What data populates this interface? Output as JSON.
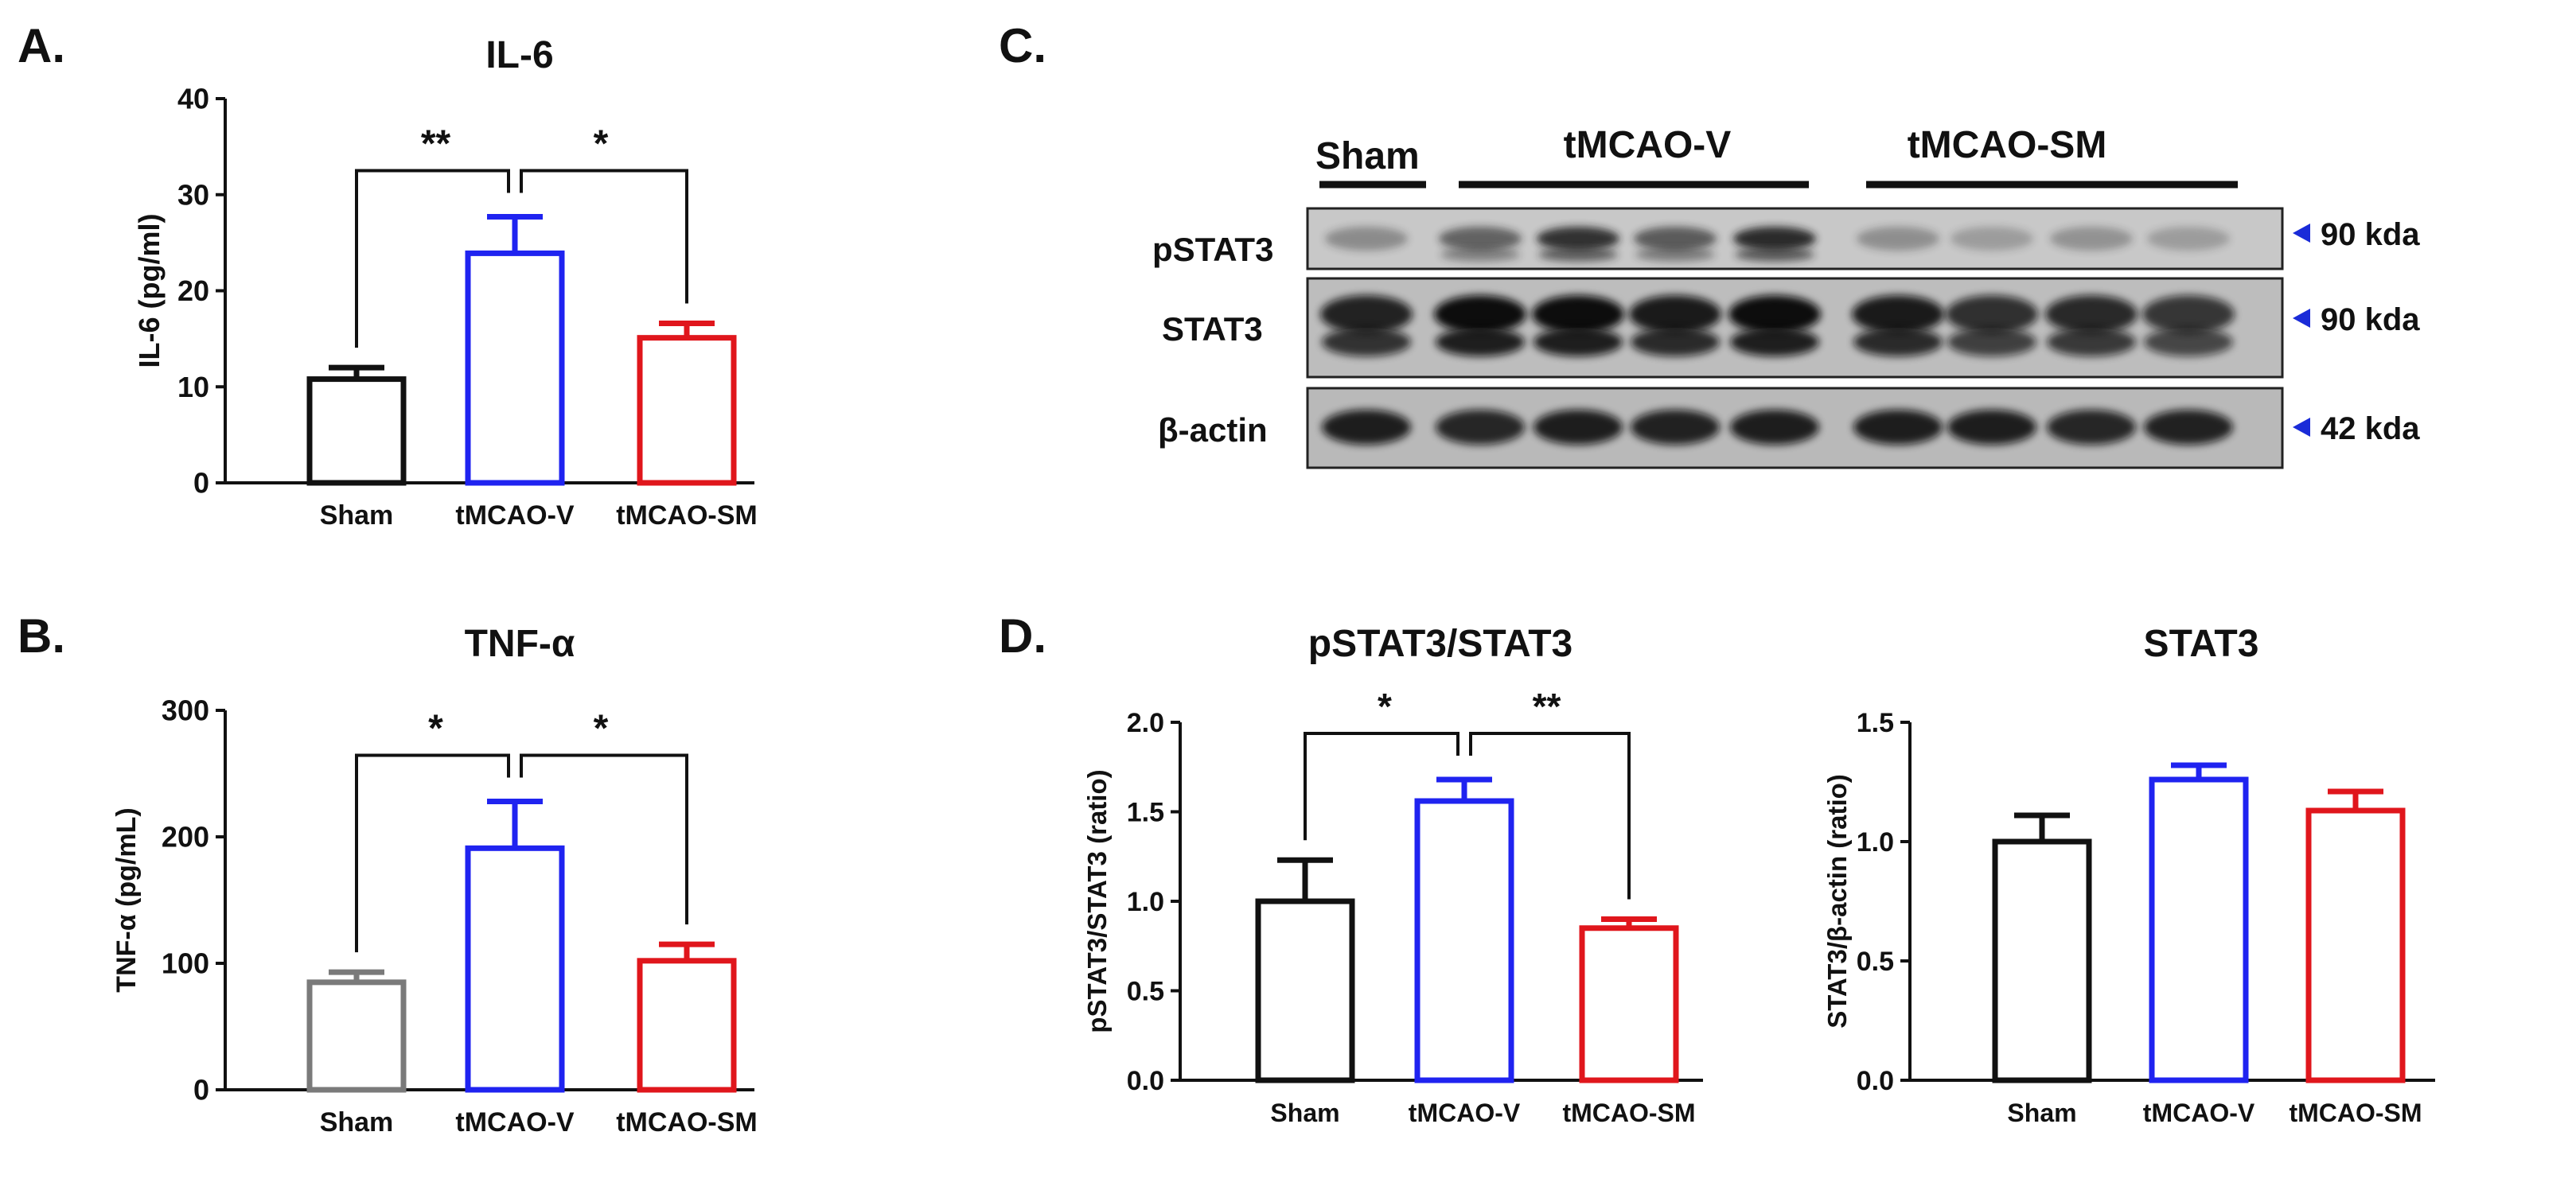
{
  "panels": {
    "A": {
      "label": "A."
    },
    "B": {
      "label": "B."
    },
    "C": {
      "label": "C."
    },
    "D": {
      "label": "D."
    }
  },
  "blot": {
    "groups": [
      "Sham",
      "tMCAO-V",
      "tMCAO-SM"
    ],
    "rows": [
      {
        "name": "pSTAT3",
        "kda": "90 kda"
      },
      {
        "name": "STAT3",
        "kda": "90 kda"
      },
      {
        "name": "β-actin",
        "kda": "42 kda"
      }
    ],
    "marker_color": "#1a2bd8"
  },
  "colors": {
    "sham": "#111111",
    "sham_b": "#7a7a7a",
    "tmcao_v": "#1f23f0",
    "tmcao_sm": "#e0161c"
  },
  "chart_data": [
    {
      "id": "il6",
      "panel": "A",
      "type": "bar",
      "title": "IL-6",
      "xlabel": "",
      "ylabel": "IL-6 (pg/ml)",
      "categories": [
        "Sham",
        "tMCAO-V",
        "tMCAO-SM"
      ],
      "values": [
        10.8,
        23.9,
        15.1
      ],
      "errors": [
        1.2,
        3.8,
        1.5
      ],
      "ylim": [
        0,
        40
      ],
      "yticks": [
        "0",
        "10",
        "20",
        "30",
        "40"
      ],
      "significance": [
        {
          "from": 0,
          "to": 1,
          "label": "**"
        },
        {
          "from": 1,
          "to": 2,
          "label": "*"
        }
      ]
    },
    {
      "id": "tnf",
      "panel": "B",
      "type": "bar",
      "title": "TNF-α",
      "xlabel": "",
      "ylabel": "TNF-α (pg/mL)",
      "categories": [
        "Sham",
        "tMCAO-V",
        "tMCAO-SM"
      ],
      "values": [
        85,
        191,
        102
      ],
      "errors": [
        8,
        37,
        13
      ],
      "ylim": [
        0,
        300
      ],
      "yticks": [
        "0",
        "100",
        "200",
        "300"
      ],
      "significance": [
        {
          "from": 0,
          "to": 1,
          "label": "*"
        },
        {
          "from": 1,
          "to": 2,
          "label": "*"
        }
      ]
    },
    {
      "id": "pstat3",
      "panel": "D",
      "type": "bar",
      "title": "pSTAT3/STAT3",
      "xlabel": "",
      "ylabel": "pSTAT3/STAT3  (ratio)",
      "categories": [
        "Sham",
        "tMCAO-V",
        "tMCAO-SM"
      ],
      "values": [
        1.0,
        1.56,
        0.85
      ],
      "errors": [
        0.23,
        0.12,
        0.05
      ],
      "ylim": [
        0,
        2.0
      ],
      "yticks": [
        "0.0",
        "0.5",
        "1.0",
        "1.5",
        "2.0"
      ],
      "significance": [
        {
          "from": 0,
          "to": 1,
          "label": "*"
        },
        {
          "from": 1,
          "to": 2,
          "label": "**"
        }
      ]
    },
    {
      "id": "stat3",
      "panel": "D",
      "type": "bar",
      "title": "STAT3",
      "xlabel": "",
      "ylabel": "STAT3/β-actin (ratio)",
      "categories": [
        "Sham",
        "tMCAO-V",
        "tMCAO-SM"
      ],
      "values": [
        1.0,
        1.26,
        1.13
      ],
      "errors": [
        0.11,
        0.06,
        0.08
      ],
      "ylim": [
        0,
        1.5
      ],
      "yticks": [
        "0.0",
        "0.5",
        "1.0",
        "1.5"
      ],
      "significance": []
    }
  ]
}
